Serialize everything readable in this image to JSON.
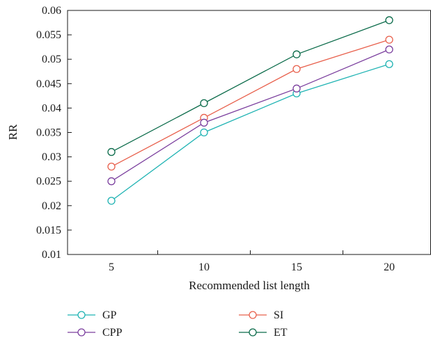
{
  "chart_data": {
    "type": "line",
    "title": "",
    "xlabel": "Recommended list length",
    "ylabel": "RR",
    "categories": [
      5,
      10,
      15,
      20
    ],
    "ylim": [
      0.01,
      0.06
    ],
    "y_ticks": [
      "0.01",
      "0.015",
      "0.02",
      "0.025",
      "0.03",
      "0.035",
      "0.04",
      "0.045",
      "0.05",
      "0.055",
      "0.06"
    ],
    "x_ticks": [
      "5",
      "10",
      "15",
      "20"
    ],
    "grid": false,
    "legend_position": "bottom",
    "series": [
      {
        "name": "GP",
        "color": "#1fb3b3",
        "marker": "circle-open",
        "values": [
          0.021,
          0.035,
          0.043,
          0.049
        ]
      },
      {
        "name": "SI",
        "color": "#e8604c",
        "marker": "circle-open",
        "values": [
          0.028,
          0.038,
          0.048,
          0.054
        ]
      },
      {
        "name": "CPP",
        "color": "#7b3f9e",
        "marker": "circle-open",
        "values": [
          0.025,
          0.037,
          0.044,
          0.052
        ]
      },
      {
        "name": "ET",
        "color": "#0b6b4a",
        "marker": "circle-open",
        "values": [
          0.031,
          0.041,
          0.051,
          0.058
        ]
      }
    ]
  }
}
